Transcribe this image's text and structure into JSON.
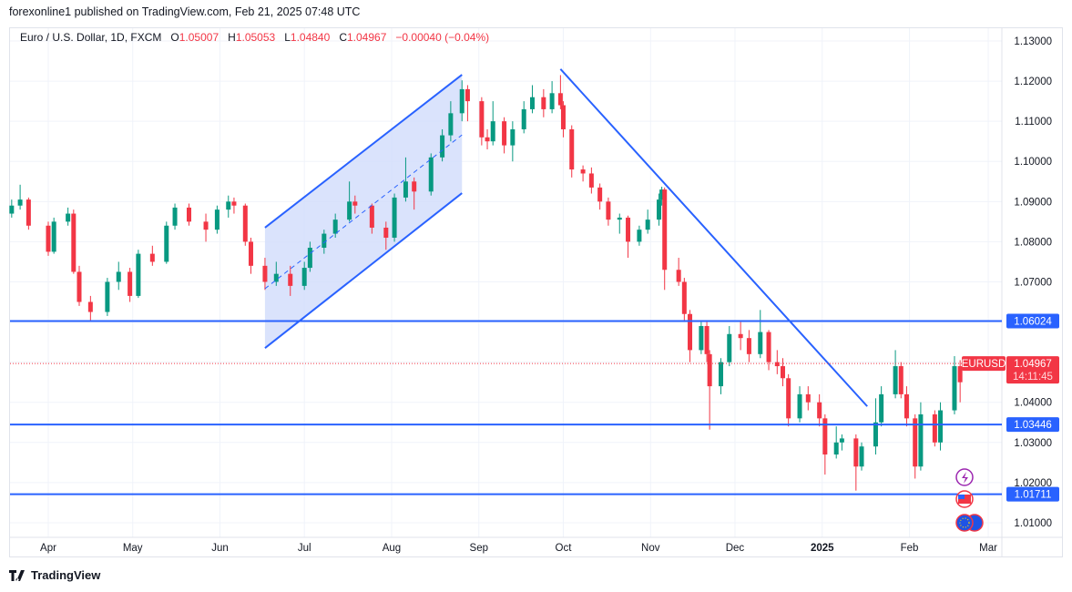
{
  "header": {
    "published": "forexonline1 published on TradingView.com, Feb 21, 2025 07:48 UTC"
  },
  "legend": {
    "symbol": "Euro / U.S. Dollar, 1D, FXCM",
    "o_label": "O",
    "o": "1.05007",
    "h_label": "H",
    "h": "1.05053",
    "l_label": "L",
    "l": "1.04840",
    "c_label": "C",
    "c": "1.04967",
    "change": "−0.00040 (−0.04%)"
  },
  "footer": {
    "brand": "TradingView"
  },
  "colors": {
    "up": "#089981",
    "down": "#f23645",
    "drawing": "#2962ff",
    "channel_fill": "#d1dcfb"
  },
  "chart_data": {
    "type": "candlestick",
    "symbol": "EURUSD",
    "interval": "1D",
    "ylim": [
      1.005,
      1.135
    ],
    "y_ticks": [
      "1.13000",
      "1.12000",
      "1.11000",
      "1.10000",
      "1.09000",
      "1.08000",
      "1.07000",
      "1.04000",
      "1.03000",
      "1.02000",
      "1.01000"
    ],
    "x_ticks": [
      {
        "label": "Apr",
        "date": "2024-04-01"
      },
      {
        "label": "May",
        "date": "2024-05-01"
      },
      {
        "label": "Jun",
        "date": "2024-06-01"
      },
      {
        "label": "Jul",
        "date": "2024-07-01"
      },
      {
        "label": "Aug",
        "date": "2024-08-01"
      },
      {
        "label": "Sep",
        "date": "2024-09-01"
      },
      {
        "label": "Oct",
        "date": "2024-10-01"
      },
      {
        "label": "Nov",
        "date": "2024-11-01"
      },
      {
        "label": "Dec",
        "date": "2024-12-01"
      },
      {
        "label": "2025",
        "date": "2025-01-01",
        "bold": true
      },
      {
        "label": "Feb",
        "date": "2025-02-01"
      },
      {
        "label": "Mar",
        "date": "2025-03-01"
      }
    ],
    "grid": true,
    "current_price": {
      "symbol_label": "EURUSD",
      "price": "1.04967",
      "value": 1.04967,
      "countdown": "14:11:45"
    },
    "horizontal_lines": [
      {
        "value": 1.06024,
        "label": "1.06024"
      },
      {
        "value": 1.03446,
        "label": "1.03446"
      },
      {
        "value": 1.01711,
        "label": "1.01711"
      }
    ],
    "trend_lines": [
      {
        "name": "channel-upper",
        "from": [
          "2024-06-17",
          1.0835
        ],
        "to": [
          "2024-08-26",
          1.1216
        ]
      },
      {
        "name": "channel-lower",
        "from": [
          "2024-06-17",
          1.0535
        ],
        "to": [
          "2024-08-26",
          1.0921
        ]
      },
      {
        "name": "channel-mid",
        "from": [
          "2024-06-17",
          1.0683
        ],
        "to": [
          "2024-08-26",
          1.1066
        ],
        "dashed": true
      },
      {
        "name": "downtrend",
        "from": [
          "2024-09-30",
          1.123
        ],
        "to": [
          "2025-01-17",
          1.039
        ]
      }
    ],
    "events": [
      "lightning-icon",
      "us-flag-icon",
      "eu-flag-icon"
    ],
    "candles": [
      [
        "2024-03-19",
        1.087,
        1.0905,
        1.086,
        1.089
      ],
      [
        "2024-03-22",
        1.089,
        1.0942,
        1.088,
        1.0905
      ],
      [
        "2024-03-25",
        1.0905,
        1.091,
        1.083,
        1.084
      ],
      [
        "2024-04-01",
        1.084,
        1.085,
        1.0765,
        1.0775
      ],
      [
        "2024-04-03",
        1.0775,
        1.086,
        1.077,
        1.085
      ],
      [
        "2024-04-08",
        1.085,
        1.0885,
        1.084,
        1.087
      ],
      [
        "2024-04-10",
        1.087,
        1.088,
        1.072,
        1.0725
      ],
      [
        "2024-04-12",
        1.0725,
        1.074,
        1.064,
        1.065
      ],
      [
        "2024-04-16",
        1.065,
        1.0665,
        1.0601,
        1.0625
      ],
      [
        "2024-04-22",
        1.0625,
        1.071,
        1.0615,
        1.07
      ],
      [
        "2024-04-26",
        1.07,
        1.075,
        1.068,
        1.0725
      ],
      [
        "2024-04-30",
        1.0725,
        1.0735,
        1.065,
        1.0665
      ],
      [
        "2024-05-03",
        1.0665,
        1.078,
        1.066,
        1.077
      ],
      [
        "2024-05-08",
        1.077,
        1.079,
        1.074,
        1.075
      ],
      [
        "2024-05-13",
        1.075,
        1.085,
        1.0745,
        1.084
      ],
      [
        "2024-05-16",
        1.084,
        1.0895,
        1.083,
        1.0885
      ],
      [
        "2024-05-21",
        1.0885,
        1.0895,
        1.084,
        1.085
      ],
      [
        "2024-05-27",
        1.085,
        1.087,
        1.08,
        1.083
      ],
      [
        "2024-05-31",
        1.083,
        1.089,
        1.082,
        1.088
      ],
      [
        "2024-06-04",
        1.088,
        1.0915,
        1.086,
        1.09
      ],
      [
        "2024-06-06",
        1.09,
        1.091,
        1.087,
        1.089
      ],
      [
        "2024-06-10",
        1.089,
        1.0895,
        1.079,
        1.08
      ],
      [
        "2024-06-12",
        1.08,
        1.081,
        1.072,
        1.074
      ],
      [
        "2024-06-17",
        1.074,
        1.076,
        1.068,
        1.07
      ],
      [
        "2024-06-21",
        1.07,
        1.075,
        1.069,
        1.072
      ],
      [
        "2024-06-26",
        1.072,
        1.074,
        1.0665,
        1.069
      ],
      [
        "2024-07-01",
        1.069,
        1.075,
        1.068,
        1.0735
      ],
      [
        "2024-07-03",
        1.0735,
        1.08,
        1.0725,
        1.0785
      ],
      [
        "2024-07-08",
        1.0785,
        1.083,
        1.077,
        1.082
      ],
      [
        "2024-07-12",
        1.082,
        1.087,
        1.081,
        1.0855
      ],
      [
        "2024-07-17",
        1.0855,
        1.095,
        1.085,
        1.09
      ],
      [
        "2024-07-19",
        1.09,
        1.0915,
        1.087,
        1.089
      ],
      [
        "2024-07-25",
        1.089,
        1.0895,
        1.082,
        1.0835
      ],
      [
        "2024-07-30",
        1.0835,
        1.085,
        1.078,
        1.081
      ],
      [
        "2024-08-02",
        1.081,
        1.092,
        1.08,
        1.091
      ],
      [
        "2024-08-06",
        1.091,
        1.101,
        1.09,
        1.095
      ],
      [
        "2024-08-09",
        1.095,
        1.096,
        1.088,
        1.0925
      ],
      [
        "2024-08-15",
        1.0925,
        1.102,
        1.0915,
        1.101
      ],
      [
        "2024-08-19",
        1.101,
        1.108,
        1.1,
        1.1065
      ],
      [
        "2024-08-22",
        1.1065,
        1.115,
        1.105,
        1.112
      ],
      [
        "2024-08-26",
        1.112,
        1.1202,
        1.11,
        1.118
      ],
      [
        "2024-08-28",
        1.118,
        1.119,
        1.11,
        1.115
      ],
      [
        "2024-09-02",
        1.115,
        1.116,
        1.104,
        1.106
      ],
      [
        "2024-09-04",
        1.106,
        1.108,
        1.103,
        1.105
      ],
      [
        "2024-09-06",
        1.105,
        1.115,
        1.104,
        1.11
      ],
      [
        "2024-09-10",
        1.11,
        1.111,
        1.102,
        1.104
      ],
      [
        "2024-09-13",
        1.104,
        1.11,
        1.1,
        1.108
      ],
      [
        "2024-09-17",
        1.108,
        1.115,
        1.107,
        1.113
      ],
      [
        "2024-09-20",
        1.113,
        1.119,
        1.112,
        1.116
      ],
      [
        "2024-09-24",
        1.116,
        1.118,
        1.111,
        1.113
      ],
      [
        "2024-09-27",
        1.113,
        1.12,
        1.112,
        1.117
      ],
      [
        "2024-09-30",
        1.117,
        1.1215,
        1.113,
        1.114
      ],
      [
        "2024-10-01",
        1.114,
        1.115,
        1.106,
        1.108
      ],
      [
        "2024-10-04",
        1.108,
        1.109,
        1.096,
        1.098
      ],
      [
        "2024-10-08",
        1.098,
        1.099,
        1.095,
        1.097
      ],
      [
        "2024-10-11",
        1.097,
        1.0985,
        1.092,
        1.0935
      ],
      [
        "2024-10-14",
        1.0935,
        1.0945,
        1.088,
        1.09
      ],
      [
        "2024-10-17",
        1.09,
        1.091,
        1.084,
        1.0855
      ],
      [
        "2024-10-21",
        1.0855,
        1.087,
        1.082,
        1.086
      ],
      [
        "2024-10-24",
        1.086,
        1.0865,
        1.076,
        1.08
      ],
      [
        "2024-10-28",
        1.08,
        1.084,
        1.079,
        1.083
      ],
      [
        "2024-10-31",
        1.083,
        1.088,
        1.082,
        1.0855
      ],
      [
        "2024-11-04",
        1.0855,
        1.092,
        1.084,
        1.0905
      ],
      [
        "2024-11-05",
        1.0905,
        1.0937,
        1.089,
        1.093
      ],
      [
        "2024-11-06",
        1.093,
        1.0935,
        1.068,
        1.073
      ],
      [
        "2024-11-11",
        1.073,
        1.076,
        1.069,
        1.07
      ],
      [
        "2024-11-13",
        1.07,
        1.071,
        1.06,
        1.062
      ],
      [
        "2024-11-15",
        1.062,
        1.063,
        1.05,
        1.053
      ],
      [
        "2024-11-19",
        1.053,
        1.06,
        1.052,
        1.059
      ],
      [
        "2024-11-21",
        1.059,
        1.06,
        1.05,
        1.052
      ],
      [
        "2024-11-22",
        1.052,
        1.053,
        1.0332,
        1.044
      ],
      [
        "2024-11-26",
        1.044,
        1.051,
        1.042,
        1.05
      ],
      [
        "2024-11-29",
        1.05,
        1.059,
        1.049,
        1.057
      ],
      [
        "2024-12-03",
        1.057,
        1.06,
        1.053,
        1.056
      ],
      [
        "2024-12-06",
        1.056,
        1.058,
        1.05,
        1.052
      ],
      [
        "2024-12-10",
        1.052,
        1.063,
        1.051,
        1.0575
      ],
      [
        "2024-12-13",
        1.0575,
        1.058,
        1.048,
        1.05
      ],
      [
        "2024-12-16",
        1.05,
        1.053,
        1.047,
        1.049
      ],
      [
        "2024-12-18",
        1.049,
        1.051,
        1.044,
        1.046
      ],
      [
        "2024-12-20",
        1.046,
        1.047,
        1.034,
        1.036
      ],
      [
        "2024-12-24",
        1.036,
        1.044,
        1.035,
        1.042
      ],
      [
        "2024-12-27",
        1.042,
        1.044,
        1.038,
        1.04
      ],
      [
        "2024-12-31",
        1.04,
        1.042,
        1.034,
        1.036
      ],
      [
        "2025-01-02",
        1.036,
        1.037,
        1.022,
        1.027
      ],
      [
        "2025-01-06",
        1.027,
        1.034,
        1.026,
        1.03
      ],
      [
        "2025-01-08",
        1.03,
        1.032,
        1.028,
        1.031
      ],
      [
        "2025-01-13",
        1.031,
        1.032,
        1.018,
        1.024
      ],
      [
        "2025-01-15",
        1.024,
        1.03,
        1.023,
        1.029
      ],
      [
        "2025-01-20",
        1.029,
        1.041,
        1.027,
        1.035
      ],
      [
        "2025-01-22",
        1.035,
        1.044,
        1.034,
        1.042
      ],
      [
        "2025-01-27",
        1.042,
        1.053,
        1.041,
        1.049
      ],
      [
        "2025-01-29",
        1.049,
        1.05,
        1.041,
        1.042
      ],
      [
        "2025-01-31",
        1.042,
        1.044,
        1.034,
        1.036
      ],
      [
        "2025-02-03",
        1.036,
        1.037,
        1.021,
        1.024
      ],
      [
        "2025-02-05",
        1.024,
        1.04,
        1.023,
        1.037
      ],
      [
        "2025-02-10",
        1.037,
        1.038,
        1.029,
        1.03
      ],
      [
        "2025-02-12",
        1.03,
        1.04,
        1.028,
        1.038
      ],
      [
        "2025-02-17",
        1.038,
        1.0515,
        1.037,
        1.049
      ],
      [
        "2025-02-19",
        1.049,
        1.0505,
        1.04,
        1.045
      ],
      [
        "2025-02-21",
        1.05007,
        1.05053,
        1.0484,
        1.04967
      ]
    ]
  }
}
